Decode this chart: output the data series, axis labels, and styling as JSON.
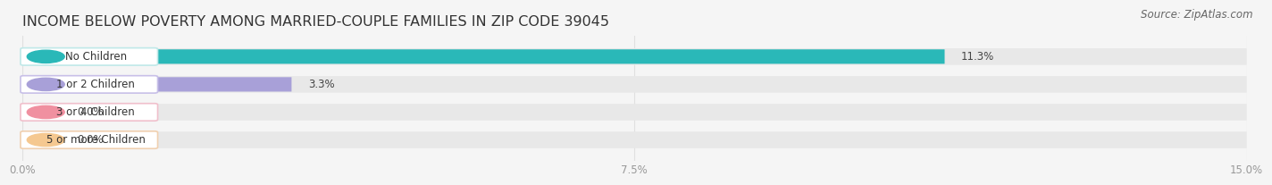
{
  "title": "INCOME BELOW POVERTY AMONG MARRIED-COUPLE FAMILIES IN ZIP CODE 39045",
  "source": "Source: ZipAtlas.com",
  "categories": [
    "No Children",
    "1 or 2 Children",
    "3 or 4 Children",
    "5 or more Children"
  ],
  "values": [
    11.3,
    3.3,
    0.0,
    0.0
  ],
  "bar_colors": [
    "#2ab8b8",
    "#a8a0d8",
    "#f090a0",
    "#f5c890"
  ],
  "bar_track_color": "#e8e8e8",
  "label_bg_colors": [
    "#e0f8f8",
    "#e8e5f8",
    "#fde8ee",
    "#fdebd8"
  ],
  "label_border_colors": [
    "#c0e8e8",
    "#c8c0e8",
    "#f0c0cc",
    "#f0d0b0"
  ],
  "xlim": [
    0,
    15.0
  ],
  "xticks": [
    0.0,
    7.5,
    15.0
  ],
  "xtick_labels": [
    "0.0%",
    "7.5%",
    "15.0%"
  ],
  "title_fontsize": 11.5,
  "source_fontsize": 8.5,
  "bar_height": 0.52,
  "value_fontsize": 8.5,
  "label_fontsize": 8.5,
  "title_color": "#333333",
  "source_color": "#666666",
  "tick_color": "#999999",
  "grid_color": "#e0e0e0",
  "background_color": "#f5f5f5",
  "label_text_color": "#333333"
}
